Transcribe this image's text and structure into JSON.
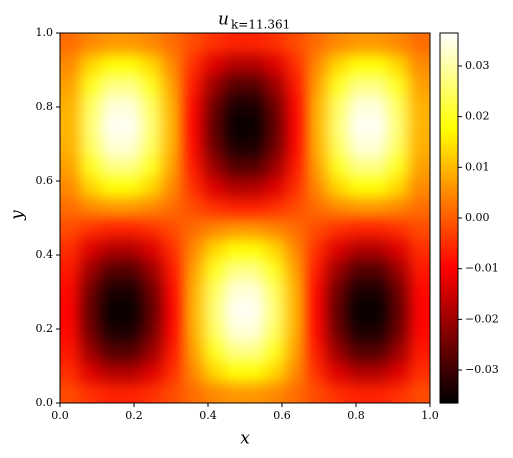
{
  "chart_data": {
    "type": "heatmap",
    "title": "u",
    "title_subscript": "k=11.361",
    "xlabel": "x",
    "ylabel": "y",
    "colormap": "hot",
    "xlim": [
      0,
      1
    ],
    "ylim": [
      0,
      1
    ],
    "xticks": [
      {
        "value": 0,
        "label": "0.0"
      },
      0.2,
      0.4,
      0.6,
      0.8,
      {
        "value": 1,
        "label": "1.0"
      }
    ],
    "yticks": [
      {
        "value": 0,
        "label": "0.0"
      },
      0.2,
      0.4,
      0.6,
      0.8,
      {
        "value": 1,
        "label": "1.0"
      }
    ],
    "clim": [
      -0.0365,
      0.0365
    ],
    "cticks": [
      {
        "value": -0.03,
        "label": "−0.03"
      },
      {
        "value": -0.02,
        "label": "−0.02"
      },
      {
        "value": -0.01,
        "label": "−0.01"
      },
      {
        "value": 0,
        "label": "0.00"
      },
      0.01,
      0.02,
      0.03
    ],
    "x": [
      0.0278,
      0.0833,
      0.1389,
      0.1944,
      0.25,
      0.3056,
      0.3611,
      0.4167,
      0.4722,
      0.5278,
      0.5833,
      0.6389,
      0.6944,
      0.75,
      0.8056,
      0.8611,
      0.9167,
      0.9722
    ],
    "y": [
      0.0278,
      0.0833,
      0.1389,
      0.1944,
      0.25,
      0.3056,
      0.3611,
      0.4167,
      0.4722,
      0.5278,
      0.5833,
      0.6389,
      0.6944,
      0.75,
      0.8056,
      0.8611,
      0.9167,
      0.9722
    ],
    "z": [
      [
        -0.0017,
        -0.0046,
        -0.0062,
        -0.0062,
        -0.0046,
        -0.0017,
        0.0017,
        0.0046,
        0.0062,
        0.0062,
        0.0046,
        0.0017,
        -0.0017,
        -0.0046,
        -0.0062,
        -0.0062,
        -0.0046,
        -0.0017
      ],
      [
        -0.0048,
        -0.0131,
        -0.0179,
        -0.0179,
        -0.0131,
        -0.0048,
        0.0048,
        0.0131,
        0.0179,
        0.0179,
        0.0131,
        0.0048,
        -0.0048,
        -0.0131,
        -0.0179,
        -0.0179,
        -0.0131,
        -0.0048
      ],
      [
        -0.0073,
        -0.02,
        -0.0274,
        -0.0274,
        -0.02,
        -0.0073,
        0.0073,
        0.02,
        0.0274,
        0.0274,
        0.02,
        0.0073,
        -0.0073,
        -0.02,
        -0.0274,
        -0.0274,
        -0.02,
        -0.0073
      ],
      [
        -0.009,
        -0.0246,
        -0.0336,
        -0.0336,
        -0.0246,
        -0.009,
        0.009,
        0.0246,
        0.0336,
        0.0336,
        0.0246,
        0.009,
        -0.009,
        -0.0246,
        -0.0336,
        -0.0336,
        -0.0246,
        -0.009
      ],
      [
        -0.0096,
        -0.0262,
        -0.0357,
        -0.0357,
        -0.0262,
        -0.0096,
        0.0096,
        0.0262,
        0.0357,
        0.0357,
        0.0262,
        0.0096,
        -0.0096,
        -0.0262,
        -0.0357,
        -0.0357,
        -0.0262,
        -0.0096
      ],
      [
        -0.009,
        -0.0246,
        -0.0336,
        -0.0336,
        -0.0246,
        -0.009,
        0.009,
        0.0246,
        0.0336,
        0.0336,
        0.0246,
        0.009,
        -0.009,
        -0.0246,
        -0.0336,
        -0.0336,
        -0.0246,
        -0.009
      ],
      [
        -0.0073,
        -0.02,
        -0.0274,
        -0.0274,
        -0.02,
        -0.0073,
        0.0073,
        0.02,
        0.0274,
        0.0274,
        0.02,
        0.0073,
        -0.0073,
        -0.02,
        -0.0274,
        -0.0274,
        -0.02,
        -0.0073
      ],
      [
        -0.0048,
        -0.0131,
        -0.0179,
        -0.0179,
        -0.0131,
        -0.0048,
        0.0048,
        0.0131,
        0.0179,
        0.0179,
        0.0131,
        0.0048,
        -0.0048,
        -0.0131,
        -0.0179,
        -0.0179,
        -0.0131,
        -0.0048
      ],
      [
        -0.0017,
        -0.0046,
        -0.0062,
        -0.0062,
        -0.0046,
        -0.0017,
        0.0017,
        0.0046,
        0.0062,
        0.0062,
        0.0046,
        0.0017,
        -0.0017,
        -0.0046,
        -0.0062,
        -0.0062,
        -0.0046,
        -0.0017
      ],
      [
        0.0017,
        0.0046,
        0.0062,
        0.0062,
        0.0046,
        0.0017,
        -0.0017,
        -0.0046,
        -0.0062,
        -0.0062,
        -0.0046,
        -0.0017,
        0.0017,
        0.0046,
        0.0062,
        0.0062,
        0.0046,
        0.0017
      ],
      [
        0.0048,
        0.0131,
        0.0179,
        0.0179,
        0.0131,
        0.0048,
        -0.0048,
        -0.0131,
        -0.0179,
        -0.0179,
        -0.0131,
        -0.0048,
        0.0048,
        0.0131,
        0.0179,
        0.0179,
        0.0131,
        0.0048
      ],
      [
        0.0073,
        0.02,
        0.0274,
        0.0274,
        0.02,
        0.0073,
        -0.0073,
        -0.02,
        -0.0274,
        -0.0274,
        -0.02,
        -0.0073,
        0.0073,
        0.02,
        0.0274,
        0.0274,
        0.02,
        0.0073
      ],
      [
        0.009,
        0.0246,
        0.0336,
        0.0336,
        0.0246,
        0.009,
        -0.009,
        -0.0246,
        -0.0336,
        -0.0336,
        -0.0246,
        -0.009,
        0.009,
        0.0246,
        0.0336,
        0.0336,
        0.0246,
        0.009
      ],
      [
        0.0096,
        0.0262,
        0.0357,
        0.0357,
        0.0262,
        0.0096,
        -0.0096,
        -0.0262,
        -0.0357,
        -0.0357,
        -0.0262,
        -0.0096,
        0.0096,
        0.0262,
        0.0357,
        0.0357,
        0.0262,
        0.0096
      ],
      [
        0.009,
        0.0246,
        0.0336,
        0.0336,
        0.0246,
        0.009,
        -0.009,
        -0.0246,
        -0.0336,
        -0.0336,
        -0.0246,
        -0.009,
        0.009,
        0.0246,
        0.0336,
        0.0336,
        0.0246,
        0.009
      ],
      [
        0.0073,
        0.02,
        0.0274,
        0.0274,
        0.02,
        0.0073,
        -0.0073,
        -0.02,
        -0.0274,
        -0.0274,
        -0.02,
        -0.0073,
        0.0073,
        0.02,
        0.0274,
        0.0274,
        0.02,
        0.0073
      ],
      [
        0.0048,
        0.0131,
        0.0179,
        0.0179,
        0.0131,
        0.0048,
        -0.0048,
        -0.0131,
        -0.0179,
        -0.0179,
        -0.0131,
        -0.0048,
        0.0048,
        0.0131,
        0.0179,
        0.0179,
        0.0131,
        0.0048
      ],
      [
        0.0017,
        0.0046,
        0.0062,
        0.0062,
        0.0046,
        0.0017,
        -0.0017,
        -0.0046,
        -0.0062,
        -0.0062,
        -0.0046,
        -0.0017,
        0.0017,
        0.0046,
        0.0062,
        0.0062,
        0.0046,
        0.0017
      ]
    ]
  }
}
